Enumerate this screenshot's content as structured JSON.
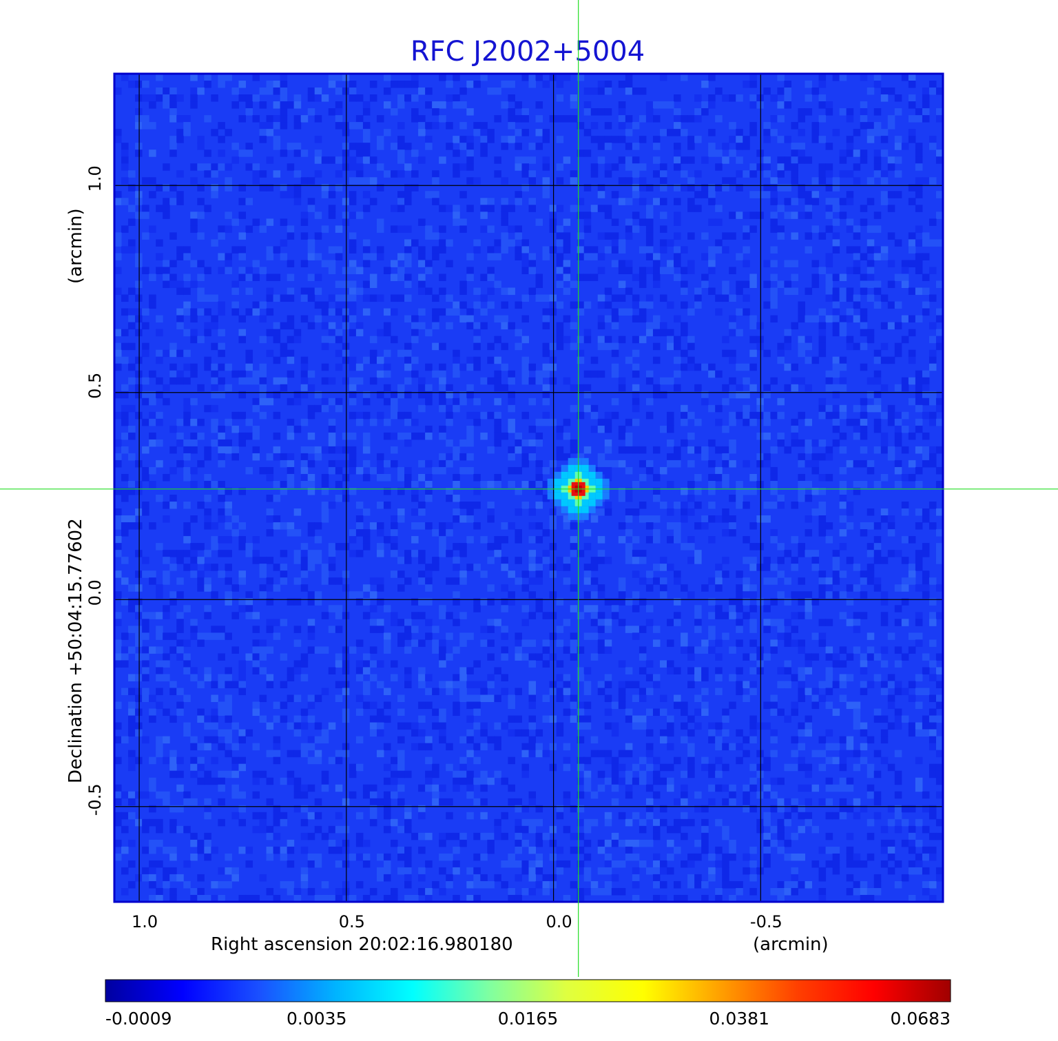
{
  "title": "RFC J2002+5004",
  "x_axis": {
    "label": "Right ascension  20:02:16.980180",
    "unit": "(arcmin)",
    "ticks": [
      "1.0",
      "0.5",
      "0.0",
      "-0.5"
    ],
    "tick_values": [
      1.0,
      0.5,
      0.0,
      -0.5
    ],
    "range": [
      1.06,
      -0.94
    ]
  },
  "y_axis": {
    "label": "Declination  +50:04:15.77602",
    "unit": "(arcmin)",
    "ticks": [
      "1.0",
      "0.5",
      "0.0",
      "-0.5"
    ],
    "tick_values": [
      1.0,
      0.5,
      0.0,
      -0.5
    ],
    "range": [
      -0.73,
      1.27
    ]
  },
  "crosshair": {
    "x": -0.06,
    "y": 0.267,
    "color": "#22dd22"
  },
  "source_peak": {
    "x": -0.06,
    "y": 0.267,
    "value": 0.0683
  },
  "image_background_color": "#1a3cf5",
  "colorbar": {
    "colormap": "jet",
    "tick_labels": [
      "-0.0009",
      "0.0035",
      "0.0165",
      "0.0381",
      "0.0683"
    ],
    "stops": [
      "#0000a0",
      "#0000ff",
      "#1a50ff",
      "#00b4ff",
      "#00ffff",
      "#80ffa0",
      "#dfff40",
      "#ffff00",
      "#ffa000",
      "#ff4000",
      "#ff0000",
      "#a00000"
    ]
  }
}
